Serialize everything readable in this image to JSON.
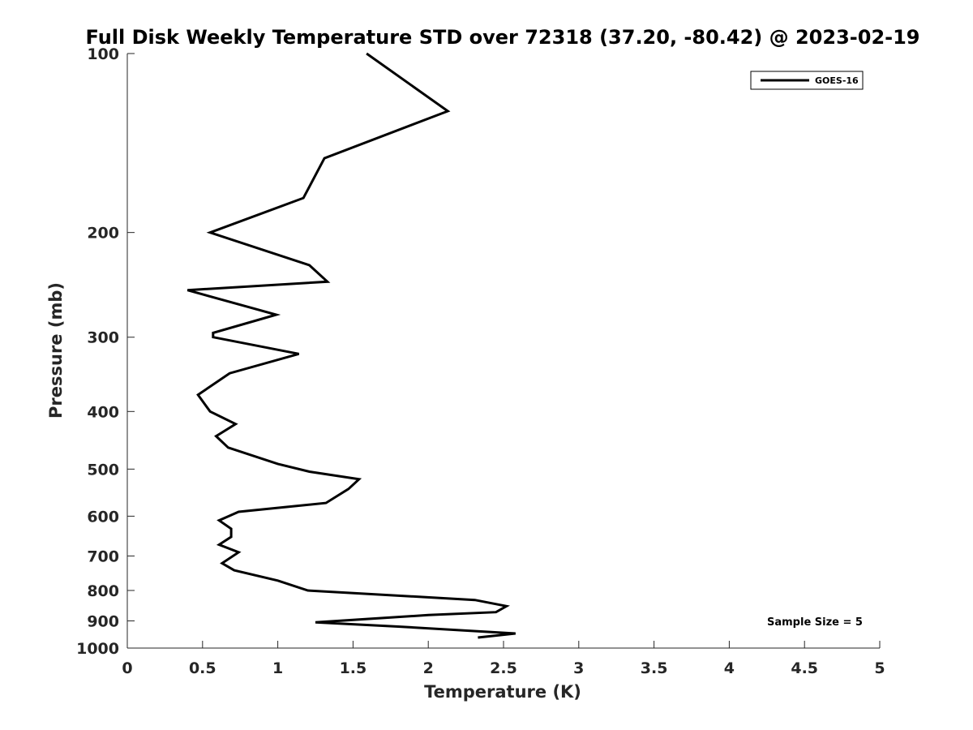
{
  "chart_data": {
    "type": "line",
    "title": "Full Disk Weekly Temperature STD over 72318 (37.20, -80.42) @ 2023-02-19",
    "xlabel": "Temperature (K)",
    "ylabel": "Pressure (mb)",
    "xlim": [
      0,
      5
    ],
    "ylim": [
      100,
      1000
    ],
    "yscale": "log",
    "yreversed": true,
    "xticks": [
      "0",
      "0.5",
      "1",
      "1.5",
      "2",
      "2.5",
      "3",
      "3.5",
      "4",
      "4.5",
      "5"
    ],
    "yticks": [
      "100",
      "200",
      "300",
      "400",
      "500",
      "600",
      "700",
      "800",
      "900",
      "1000"
    ],
    "grid": false,
    "legend_position": "top-right",
    "series": [
      {
        "name": "GOES-16",
        "color": "#000000",
        "points": [
          [
            1.59,
            100
          ],
          [
            2.13,
            125
          ],
          [
            1.31,
            150
          ],
          [
            1.17,
            175
          ],
          [
            0.55,
            200
          ],
          [
            1.21,
            227
          ],
          [
            1.33,
            242
          ],
          [
            0.4,
            250
          ],
          [
            0.99,
            275
          ],
          [
            0.57,
            295
          ],
          [
            0.57,
            300
          ],
          [
            1.14,
            320
          ],
          [
            0.68,
            345
          ],
          [
            0.47,
            375
          ],
          [
            0.55,
            400
          ],
          [
            0.72,
            420
          ],
          [
            0.59,
            440
          ],
          [
            0.67,
            460
          ],
          [
            1.0,
            490
          ],
          [
            1.21,
            505
          ],
          [
            1.54,
            520
          ],
          [
            1.47,
            540
          ],
          [
            1.32,
            570
          ],
          [
            0.74,
            590
          ],
          [
            0.61,
            610
          ],
          [
            0.69,
            630
          ],
          [
            0.69,
            650
          ],
          [
            0.61,
            670
          ],
          [
            0.74,
            690
          ],
          [
            0.63,
            720
          ],
          [
            0.71,
            740
          ],
          [
            1.0,
            770
          ],
          [
            1.2,
            800
          ],
          [
            2.31,
            830
          ],
          [
            2.52,
            850
          ],
          [
            2.45,
            870
          ],
          [
            2.0,
            880
          ],
          [
            1.25,
            905
          ],
          [
            1.8,
            920
          ],
          [
            2.58,
            945
          ],
          [
            2.33,
            960
          ]
        ]
      }
    ],
    "annotation": "Sample Size = 5"
  }
}
